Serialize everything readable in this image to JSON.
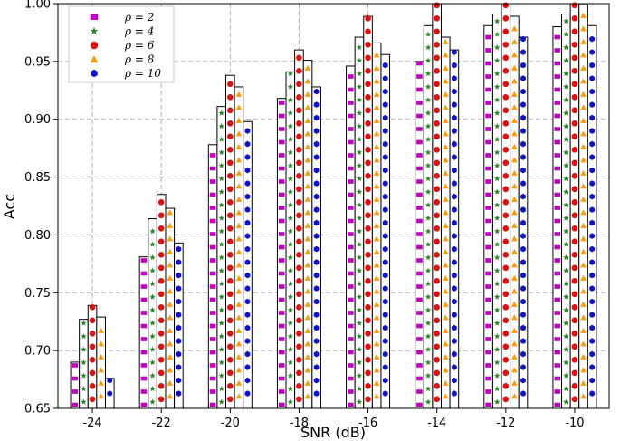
{
  "chart_data": {
    "type": "bar",
    "xlabel": "SNR (dB)",
    "ylabel": "Acc",
    "categories": [
      "-24",
      "-22",
      "-20",
      "-18",
      "-16",
      "-14",
      "-12",
      "-10"
    ],
    "ylim": [
      0.65,
      1.0
    ],
    "yticks": [
      "0.65",
      "0.70",
      "0.75",
      "0.80",
      "0.85",
      "0.90",
      "0.95",
      "1.00"
    ],
    "grid": true,
    "legend_position": "top-left",
    "series": [
      {
        "name": "ρ = 2",
        "marker": "square",
        "color": "#c000c0",
        "values": [
          0.69,
          0.781,
          0.878,
          0.918,
          0.946,
          0.95,
          0.981,
          0.98
        ]
      },
      {
        "name": "ρ = 4",
        "marker": "star",
        "color": "#228b22",
        "values": [
          0.727,
          0.814,
          0.911,
          0.941,
          0.971,
          0.981,
          0.991,
          0.991
        ]
      },
      {
        "name": "ρ = 6",
        "marker": "circle",
        "color": "#e01010",
        "values": [
          0.739,
          0.835,
          0.938,
          0.96,
          0.989,
          1.0,
          1.0,
          1.0
        ]
      },
      {
        "name": "ρ = 8",
        "marker": "triangle",
        "color": "#ff9a00",
        "values": [
          0.729,
          0.823,
          0.928,
          0.951,
          0.966,
          0.971,
          0.989,
          0.999
        ]
      },
      {
        "name": "ρ = 10",
        "marker": "hexagon",
        "color": "#1010d0",
        "values": [
          0.676,
          0.793,
          0.898,
          0.928,
          0.956,
          0.96,
          0.971,
          0.981
        ]
      }
    ]
  }
}
